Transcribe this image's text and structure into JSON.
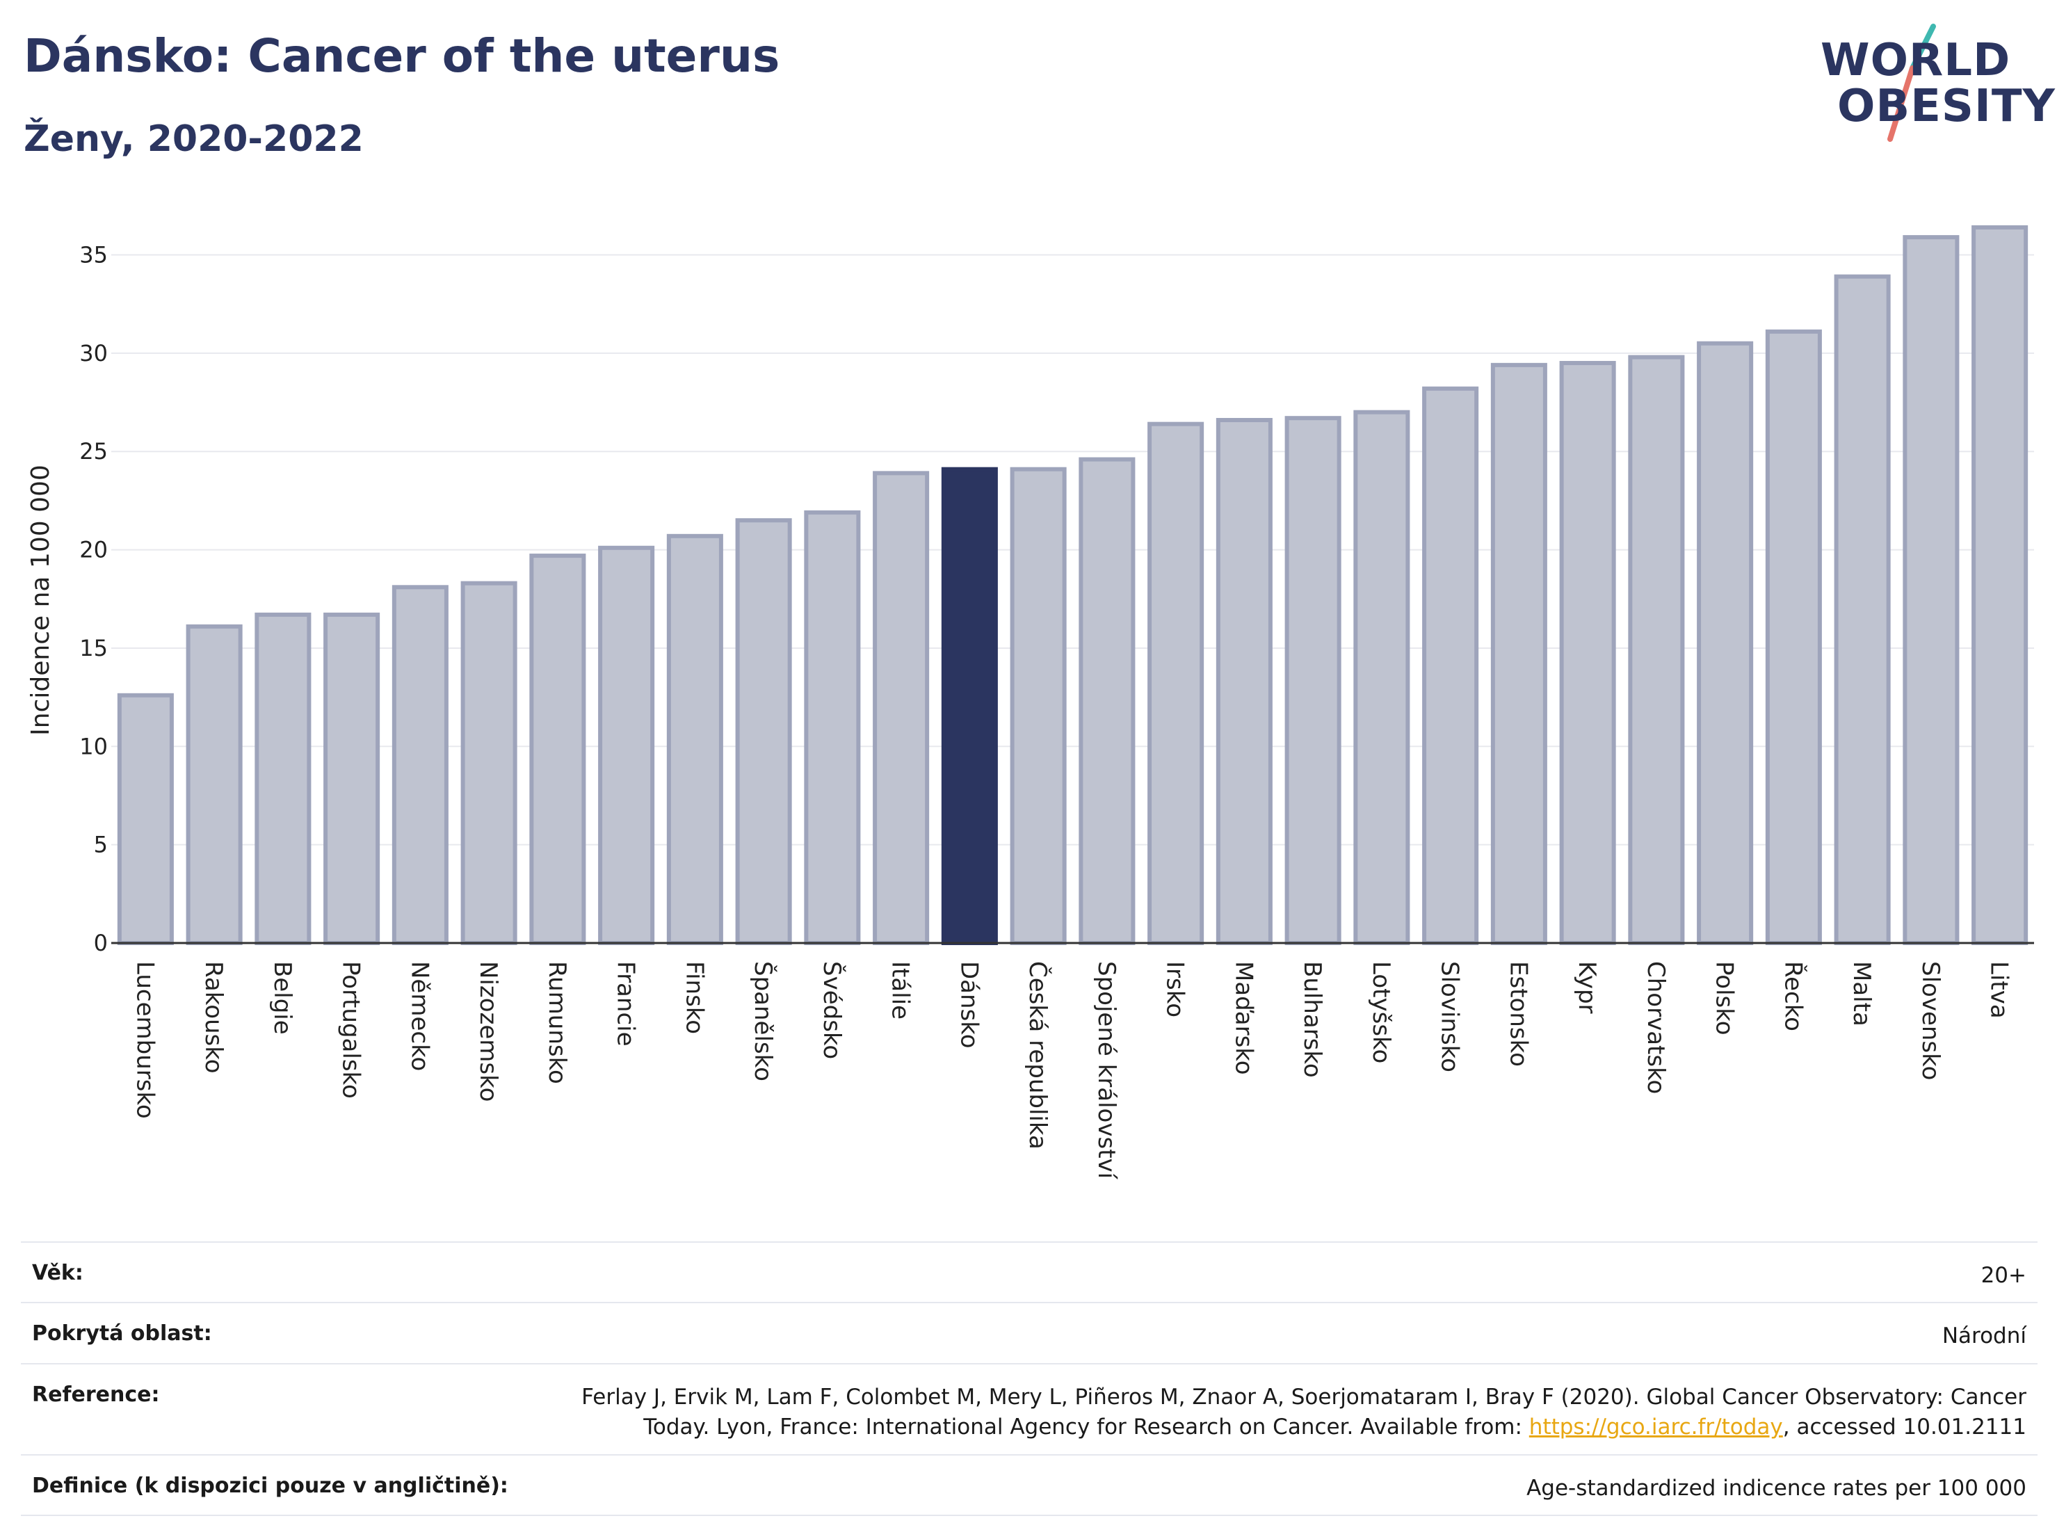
{
  "header": {
    "title": "Dánsko: Cancer of the uterus",
    "subtitle": "Ženy, 2020-2022"
  },
  "logo": {
    "line1": "WORLD",
    "line2": "OBESITY"
  },
  "colors": {
    "highlight": "#2b3560",
    "bar": "#bfc3d0",
    "bar_border": "#9ea4bb",
    "accent_teal": "#3fb8b0",
    "accent_coral": "#e5746a"
  },
  "chart_data": {
    "type": "bar",
    "ylabel": "Incidence na 100 000",
    "ylim": [
      0,
      37
    ],
    "yticks": [
      0,
      5,
      10,
      15,
      20,
      25,
      30,
      35
    ],
    "grid": true,
    "highlight": "Dánsko",
    "categories": [
      "Lucembursko",
      "Rakousko",
      "Belgie",
      "Portugalsko",
      "Německo",
      "Nizozemsko",
      "Rumunsko",
      "Francie",
      "Finsko",
      "Španělsko",
      "Švédsko",
      "Itálie",
      "Dánsko",
      "Česká republika",
      "Spojené království",
      "Irsko",
      "Maďarsko",
      "Bulharsko",
      "Lotyšsko",
      "Slovinsko",
      "Estonsko",
      "Kypr",
      "Chorvatsko",
      "Polsko",
      "Řecko",
      "Malta",
      "Slovensko",
      "Litva"
    ],
    "values": [
      12.6,
      16.1,
      16.7,
      16.7,
      18.1,
      18.3,
      19.7,
      20.1,
      20.7,
      21.5,
      21.9,
      23.9,
      24.1,
      24.1,
      24.6,
      26.4,
      26.6,
      26.7,
      27.0,
      28.2,
      29.4,
      29.5,
      29.8,
      30.5,
      31.1,
      33.9,
      35.9,
      36.4
    ]
  },
  "info": {
    "age_label": "Věk:",
    "age_value": "20+",
    "area_label": "Pokrytá oblast:",
    "area_value": "Národní",
    "ref_label": "Reference:",
    "ref_text1": "Ferlay J, Ervik M, Lam F, Colombet M, Mery L, Piñeros M, Znaor A, Soerjomataram I, Bray F (2020). Global Cancer Observatory: Cancer",
    "ref_text2": "Today. Lyon, France: International Agency for Research on Cancer. Available from:",
    "ref_link": "https://gco.iarc.fr/today",
    "ref_text3": ", accessed 10.01.2111",
    "def_label": "Definice (k dispozici pouze v angličtině):",
    "def_value": "Age-standardized indicence rates per 100 000"
  }
}
